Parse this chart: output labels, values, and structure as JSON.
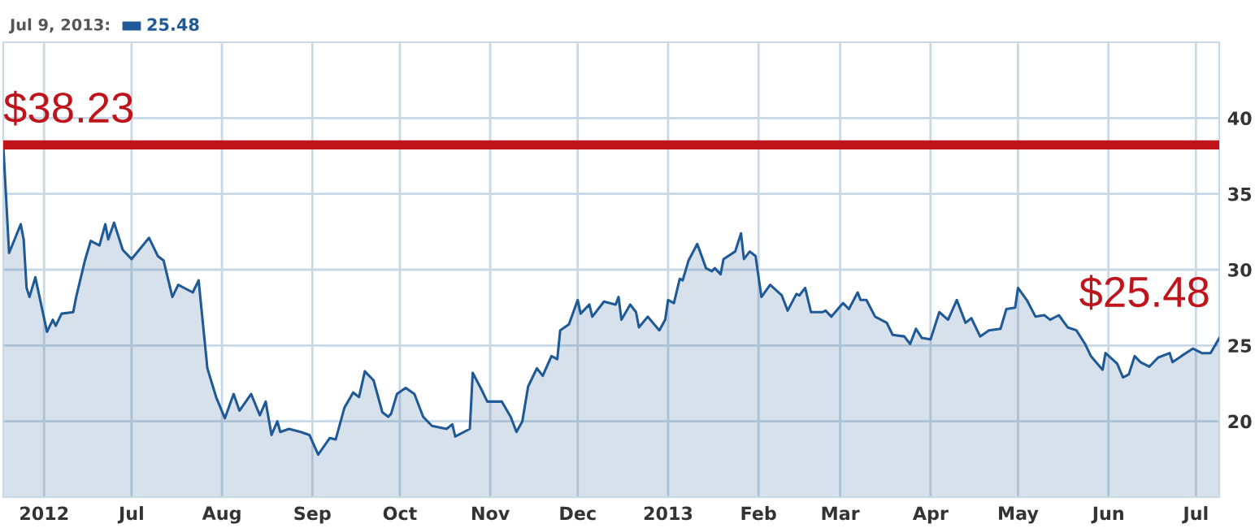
{
  "chart_data": {
    "type": "area",
    "x": [
      "2012-05-18",
      "2012-05-20",
      "2012-05-24",
      "2012-05-25",
      "2012-05-26",
      "2012-05-27",
      "2012-05-29",
      "2012-05-31",
      "2012-06-02",
      "2012-06-04",
      "2012-06-05",
      "2012-06-07",
      "2012-06-11",
      "2012-06-12",
      "2012-06-15",
      "2012-06-17",
      "2012-06-20",
      "2012-06-22",
      "2012-06-23",
      "2012-06-25",
      "2012-06-28",
      "2012-07-01",
      "2012-07-07",
      "2012-07-10",
      "2012-07-12",
      "2012-07-15",
      "2012-07-17",
      "2012-07-22",
      "2012-07-24",
      "2012-07-27",
      "2012-07-30",
      "2012-08-02",
      "2012-08-05",
      "2012-08-07",
      "2012-08-11",
      "2012-08-14",
      "2012-08-16",
      "2012-08-18",
      "2012-08-20",
      "2012-08-21",
      "2012-08-24",
      "2012-08-28",
      "2012-08-31",
      "2012-09-03",
      "2012-09-07",
      "2012-09-09",
      "2012-09-12",
      "2012-09-15",
      "2012-09-17",
      "2012-09-19",
      "2012-09-22",
      "2012-09-25",
      "2012-09-27",
      "2012-09-28",
      "2012-09-30",
      "2012-10-03",
      "2012-10-06",
      "2012-10-09",
      "2012-10-12",
      "2012-10-17",
      "2012-10-19",
      "2012-10-20",
      "2012-10-25",
      "2012-10-26",
      "2012-10-29",
      "2012-10-31",
      "2012-11-05",
      "2012-11-08",
      "2012-11-10",
      "2012-11-12",
      "2012-11-14",
      "2012-11-17",
      "2012-11-19",
      "2012-11-22",
      "2012-11-24",
      "2012-11-25",
      "2012-11-28",
      "2012-12-01",
      "2012-12-02",
      "2012-12-05",
      "2012-12-06",
      "2012-12-10",
      "2012-12-14",
      "2012-12-15",
      "2012-12-16",
      "2012-12-19",
      "2012-12-21",
      "2012-12-22",
      "2012-12-25",
      "2012-12-29",
      "2012-12-31",
      "2013-01-01",
      "2013-01-03",
      "2013-01-05",
      "2013-01-06",
      "2013-01-08",
      "2013-01-11",
      "2013-01-14",
      "2013-01-16",
      "2013-01-17",
      "2013-01-19",
      "2013-01-20",
      "2013-01-24",
      "2013-01-26",
      "2013-01-27",
      "2013-01-29",
      "2013-01-31",
      "2013-02-02",
      "2013-02-05",
      "2013-02-09",
      "2013-02-11",
      "2013-02-14",
      "2013-02-15",
      "2013-02-17",
      "2013-02-19",
      "2013-02-23",
      "2013-02-24",
      "2013-02-26",
      "2013-03-02",
      "2013-03-04",
      "2013-03-07",
      "2013-03-08",
      "2013-03-10",
      "2013-03-13",
      "2013-03-17",
      "2013-03-19",
      "2013-03-23",
      "2013-03-25",
      "2013-03-27",
      "2013-03-29",
      "2013-04-01",
      "2013-04-04",
      "2013-04-07",
      "2013-04-10",
      "2013-04-13",
      "2013-04-15",
      "2013-04-18",
      "2013-04-21",
      "2013-04-25",
      "2013-04-27",
      "2013-04-30",
      "2013-05-01",
      "2013-05-04",
      "2013-05-07",
      "2013-05-10",
      "2013-05-12",
      "2013-05-15",
      "2013-05-18",
      "2013-05-21",
      "2013-05-24",
      "2013-05-26",
      "2013-05-30",
      "2013-05-31",
      "2013-06-04",
      "2013-06-06",
      "2013-06-08",
      "2013-06-10",
      "2013-06-12",
      "2013-06-15",
      "2013-06-18",
      "2013-06-22",
      "2013-06-23",
      "2013-06-26",
      "2013-06-30",
      "2013-07-03",
      "2013-07-06",
      "2013-07-09"
    ],
    "series": [
      {
        "color": "#1f5a96",
        "values": [
          38.23,
          31.1,
          33.0,
          32.0,
          28.8,
          28.2,
          29.5,
          27.7,
          25.9,
          26.7,
          26.3,
          27.1,
          27.2,
          28.2,
          30.6,
          31.9,
          31.6,
          33.0,
          32.0,
          33.1,
          31.3,
          30.7,
          32.1,
          30.9,
          30.6,
          28.2,
          29.0,
          28.5,
          29.3,
          23.5,
          21.6,
          20.2,
          21.8,
          20.7,
          21.8,
          20.4,
          21.3,
          19.1,
          20.0,
          19.3,
          19.5,
          19.3,
          19.1,
          17.8,
          18.9,
          18.8,
          20.9,
          21.9,
          21.6,
          23.3,
          22.7,
          20.6,
          20.3,
          20.5,
          21.8,
          22.2,
          21.8,
          20.3,
          19.7,
          19.5,
          19.8,
          19.0,
          19.5,
          23.2,
          22.1,
          21.3,
          21.3,
          20.3,
          19.3,
          20.0,
          22.3,
          23.5,
          23.0,
          24.3,
          24.1,
          26.0,
          26.4,
          28.0,
          27.1,
          27.7,
          26.9,
          27.9,
          27.7,
          28.2,
          26.7,
          27.7,
          27.2,
          26.2,
          26.9,
          26.0,
          26.7,
          28.0,
          27.8,
          29.4,
          29.3,
          30.6,
          31.7,
          30.1,
          29.9,
          30.1,
          29.7,
          30.7,
          31.2,
          32.4,
          30.7,
          31.2,
          30.9,
          28.2,
          29.0,
          28.3,
          27.3,
          28.4,
          28.3,
          28.8,
          27.2,
          27.2,
          27.3,
          26.9,
          27.8,
          27.4,
          28.5,
          28.0,
          28.0,
          26.9,
          26.5,
          25.7,
          25.6,
          25.1,
          26.1,
          25.5,
          25.4,
          27.2,
          26.7,
          28.0,
          26.5,
          26.8,
          25.6,
          26.0,
          26.1,
          27.4,
          27.5,
          28.8,
          28.0,
          26.9,
          27.0,
          26.7,
          27.0,
          26.2,
          26.0,
          25.1,
          24.3,
          23.4,
          24.5,
          23.8,
          22.9,
          23.1,
          24.3,
          23.9,
          23.6,
          24.2,
          24.5,
          23.9,
          24.3,
          24.8,
          24.5,
          24.5,
          25.48
        ]
      }
    ],
    "xlim": [
      "2012-05-18",
      "2013-07-09"
    ],
    "xticks": [
      {
        "value": "2012-06-01",
        "label": "2012"
      },
      {
        "value": "2012-07-01",
        "label": "Jul"
      },
      {
        "value": "2012-08-01",
        "label": "Aug"
      },
      {
        "value": "2012-09-01",
        "label": "Sep"
      },
      {
        "value": "2012-10-01",
        "label": "Oct"
      },
      {
        "value": "2012-11-01",
        "label": "Nov"
      },
      {
        "value": "2012-12-01",
        "label": "Dec"
      },
      {
        "value": "2013-01-01",
        "label": "2013"
      },
      {
        "value": "2013-02-01",
        "label": "Feb"
      },
      {
        "value": "2013-03-01",
        "label": "Mar"
      },
      {
        "value": "2013-04-01",
        "label": "Apr"
      },
      {
        "value": "2013-05-01",
        "label": "May"
      },
      {
        "value": "2013-06-01",
        "label": "Jun"
      },
      {
        "value": "2013-07-01",
        "label": "Jul"
      }
    ],
    "ylim": [
      15,
      45
    ],
    "yticks": [
      20,
      25,
      30,
      35,
      40
    ],
    "grid": true,
    "ref_lines": [
      {
        "axis": "y",
        "value": 38.23,
        "label": "$38.23",
        "color": "#c0141c"
      }
    ],
    "annotations": [
      "Jul 9, 2013:",
      "25.48",
      {
        "text": "$25.48",
        "x": "2013-07-09",
        "y": 25.48
      }
    ]
  }
}
